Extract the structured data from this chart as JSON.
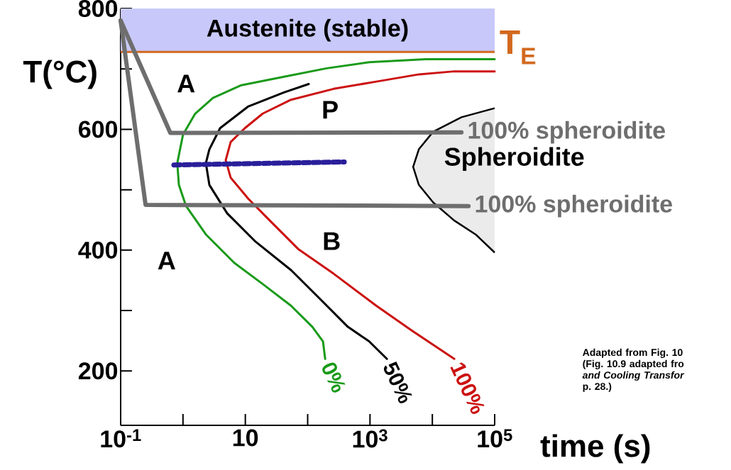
{
  "chart_data": {
    "type": "line",
    "log": "x",
    "xlabel": "time (s)",
    "ylabel": "T(°C)",
    "xlim": [
      0.1,
      100000
    ],
    "xticks": [
      {
        "value": 0.1,
        "label": "10$^{-1}$"
      },
      {
        "value": 1,
        "label": null
      },
      {
        "value": 10,
        "label": "10"
      },
      {
        "value": 100,
        "label": null
      },
      {
        "value": 1000,
        "label": "10$^{3}$"
      },
      {
        "value": 10000,
        "label": null
      },
      {
        "value": 100000,
        "label": "10$^{5}$"
      }
    ],
    "ylim": [
      110,
      800
    ],
    "yticks": [
      200,
      {
        "value": 300,
        "label": null
      },
      400,
      {
        "value": 500,
        "label": null
      },
      600,
      {
        "value": 700,
        "label": null
      },
      800
    ],
    "series": [
      {
        "name": "0%",
        "color": "#1a9a1a",
        "x": [
          100000,
          7890,
          968,
          201,
          41.7,
          8.63,
          3.03,
          1.57,
          1.0,
          0.81,
          0.86,
          1.12,
          2.33,
          6.64,
          19.0,
          54.1,
          119,
          176,
          191
        ],
        "values": [
          716,
          716,
          711,
          701,
          687,
          673,
          652,
          626,
          591,
          544,
          508,
          473,
          426,
          379,
          344,
          308,
          273,
          249,
          220
        ]
      },
      {
        "name": "50%",
        "color": "#000000",
        "x": [
          104,
          41.7,
          11.2,
          3.94,
          2.65,
          2.33,
          2.65,
          5.11,
          14.6,
          54.1,
          155,
          442,
          968,
          1870
        ],
        "values": [
          675,
          661,
          638,
          602,
          567,
          544,
          508,
          461,
          414,
          367,
          320,
          273,
          249,
          220
        ]
      },
      {
        "name": "100%",
        "color": "#cc1111",
        "x": [
          100000,
          22500,
          6080,
          1260,
          261,
          54.1,
          19.0,
          9.84,
          5.82,
          4.85,
          5.82,
          11.2,
          24.7,
          70.3,
          261,
          1260,
          4680,
          22500
        ],
        "values": [
          696,
          696,
          691,
          679,
          667,
          649,
          626,
          602,
          579,
          549,
          520,
          485,
          449,
          402,
          361,
          308,
          267,
          220
        ]
      },
      {
        "type": "area",
        "color": "#000000",
        "x": [
          100000,
          29300,
          10300,
          6080,
          4920,
          6080,
          10300,
          22500,
          49500,
          100000
        ],
        "values": [
          635,
          620,
          596,
          567,
          538,
          508,
          479,
          449,
          426,
          396
        ]
      },
      {
        "name": "100% spheroidite",
        "color": "#6e6e6e",
        "x": [
          0.1,
          0.627,
          29300
        ],
        "values": [
          780,
          594,
          595
        ]
      },
      {
        "name": "100% spheroidite",
        "color": "#6e6e6e",
        "x": [
          0.1,
          0.251,
          38100
        ],
        "values": [
          780,
          475,
          473
        ]
      },
      {
        "color": "#2a1f9a",
        "line_style": "dashed",
        "x": [
          0.714,
          387
        ],
        "values": [
          541,
          546
        ]
      }
    ],
    "bands": [
      {
        "axis": "y",
        "from": 728,
        "to": 800,
        "label": "Austenite (stable)",
        "color": "#c8c8fa"
      }
    ],
    "ref_lines": [
      {
        "axis": "y",
        "value": 728,
        "label": "T$_{E}$",
        "color": "#d2691e"
      }
    ],
    "annotations": [
      "A",
      "P",
      "Spheroidite",
      "B",
      "A",
      "Adapted from Fig. 10 (Fig. 10.9 adapted fro *and Cooling Transfor* p. 28.)"
    ],
    "tick_labels": true
  }
}
